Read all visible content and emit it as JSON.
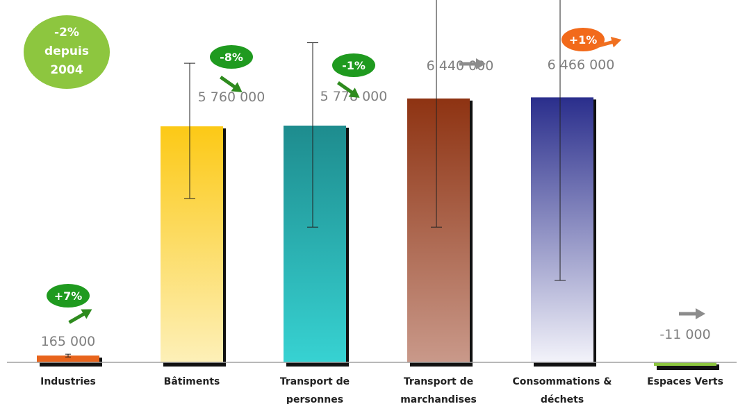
{
  "summary_badge": {
    "lines": [
      "-2%",
      "depuis",
      "2004"
    ],
    "color": "#8dc63f"
  },
  "chart_data": {
    "type": "bar",
    "categories": [
      "Industries",
      "Bâtiments",
      "Transport de personnes",
      "Transport de marchandises",
      "Consommations & déchets",
      "Espaces Verts"
    ],
    "category_lines": [
      [
        "Industries"
      ],
      [
        "Bâtiments"
      ],
      [
        "Transport de",
        "personnes"
      ],
      [
        "Transport de",
        "marchandises"
      ],
      [
        "Consommations &",
        "déchets"
      ],
      [
        "Espaces Verts"
      ]
    ],
    "values": [
      165000,
      5760000,
      5778000,
      6440000,
      6466000,
      -11000
    ],
    "value_labels": [
      "165 000",
      "5 760 000",
      "5 778 000",
      "6 440 000",
      "6 466 000",
      "-11 000"
    ],
    "error_bars": [
      [
        130000,
        200000
      ],
      [
        4000000,
        7300000
      ],
      [
        3300000,
        7800000
      ],
      [
        3300000,
        9000000
      ],
      [
        2000000,
        9000000
      ],
      null
    ],
    "changes": [
      "+7%",
      "-8%",
      "-1%",
      "",
      "+1%",
      ""
    ],
    "trends": [
      "up",
      "down",
      "down",
      "flat",
      "up",
      "flat"
    ],
    "trend_colors": {
      "up_green": "#2e8b1e",
      "down_green": "#2e8b1e",
      "flat": "#8c8c8c",
      "up_orange": "#f07020"
    },
    "badge_colors": [
      "#1f9a1f",
      "#1f9a1f",
      "#1f9a1f",
      "",
      "#f26a1b",
      ""
    ],
    "bar_colors": [
      [
        "#e8641c",
        "#e8641c"
      ],
      [
        "#fcc916",
        "#fdf0b8"
      ],
      [
        "#1e8c8e",
        "#37d2d2"
      ],
      [
        "#8e3312",
        "#c9998a"
      ],
      [
        "#2a2e8c",
        "#f3f3fa"
      ],
      [
        "#8dc63f",
        "#8dc63f"
      ]
    ],
    "ylim": [
      -150000,
      9500000
    ],
    "xlabel": "",
    "ylabel": "",
    "grid": false
  }
}
